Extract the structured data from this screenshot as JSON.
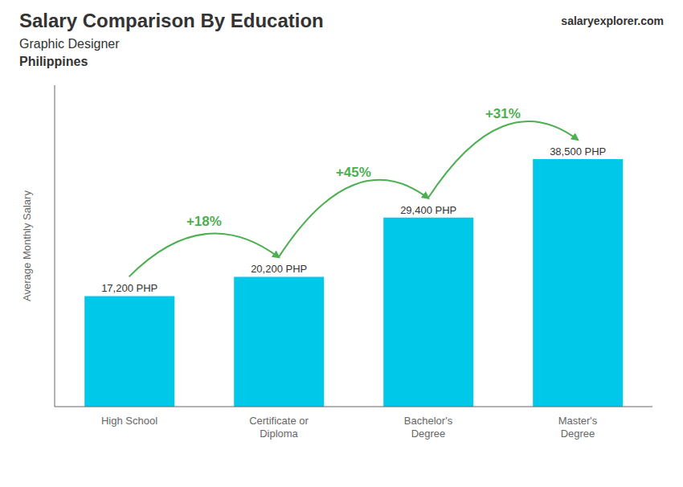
{
  "chart_data": {
    "type": "bar",
    "title": "Salary Comparison By Education",
    "subtitle": "Graphic Designer",
    "country": "Philippines",
    "brand": "salaryexplorer.com",
    "y_label": "Average Monthly Salary",
    "categories": [
      "High School",
      "Certificate or\nDiploma",
      "Bachelor's\nDegree",
      "Master's\nDegree"
    ],
    "values": [
      17200,
      20200,
      29400,
      38500
    ],
    "value_labels": [
      "17,200 PHP",
      "20,200 PHP",
      "29,400 PHP",
      "38,500 PHP"
    ],
    "data_labels": true,
    "annotations": [
      "+18%",
      "+45%",
      "+31%"
    ],
    "color": "#00c8e8",
    "ylim": [
      0,
      50000
    ],
    "tick_labels": "x",
    "grid": false
  }
}
